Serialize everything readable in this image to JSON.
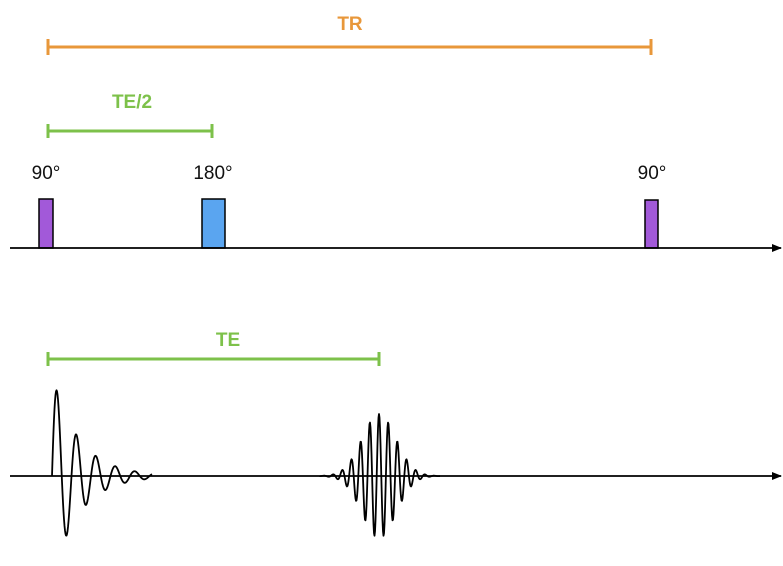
{
  "diagram": {
    "tr_label": "TR",
    "te_half_label": "TE/2",
    "te_label": "TE",
    "pulses": [
      {
        "label": "90°",
        "type": "excitation"
      },
      {
        "label": "180°",
        "type": "refocusing"
      },
      {
        "label": "90°",
        "type": "excitation"
      }
    ]
  },
  "colors": {
    "tr": "#E8973A",
    "te": "#7DC14A",
    "excitation_pulse": "#A259D9",
    "refocusing_pulse": "#5AA5F0",
    "axis": "#000000",
    "signal": "#000000"
  }
}
